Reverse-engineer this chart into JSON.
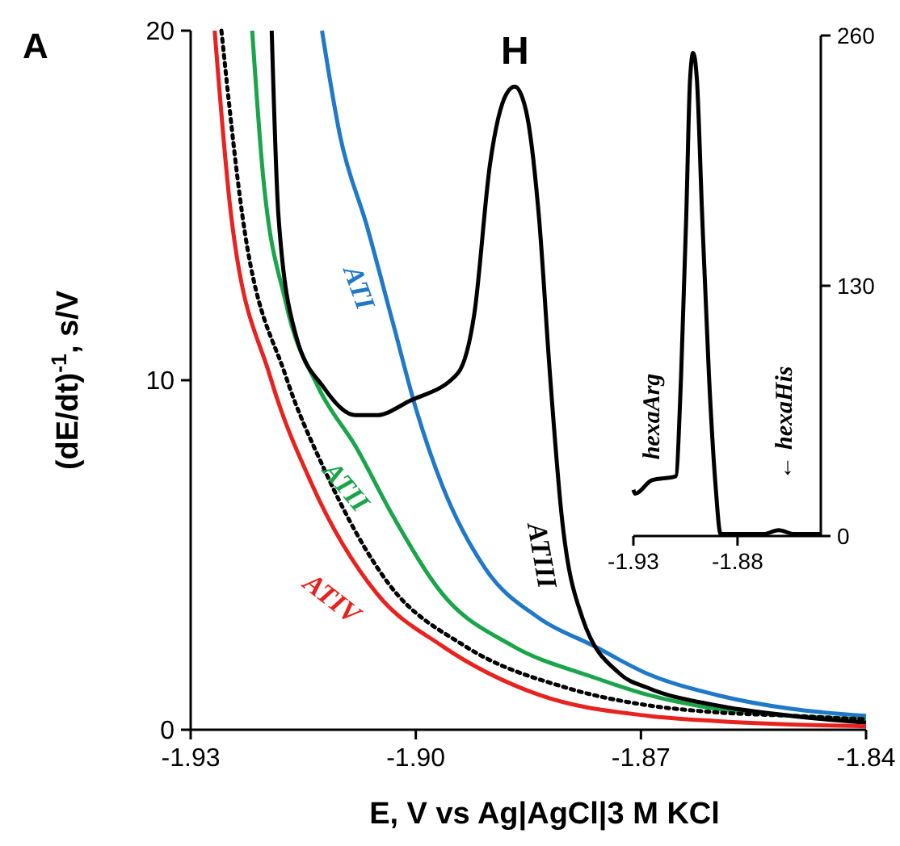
{
  "chart_data": [
    {
      "type": "line",
      "xlabel": "E, V vs Ag|AgCl|3 M KCl",
      "ylabel": "(dE/dt)$^{-1}$, s/V",
      "annotations": [
        "A",
        {
          "text": "H",
          "x": -1.8868,
          "y": 18.4
        }
      ],
      "xlim": [
        -1.93,
        -1.84
      ],
      "xticks": [
        -1.93,
        {
          "value": -1.9,
          "label": "-1.90"
        },
        -1.87,
        -1.84
      ],
      "ylim": [
        0,
        20
      ],
      "yticks": [
        0,
        10,
        20
      ],
      "grid": false,
      "marker": "none",
      "series": [
        {
          "name": "ATI",
          "color": "#1f78c8",
          "x": [
            -1.9125,
            -1.9101,
            -1.9065,
            -1.903,
            -1.9,
            -1.8965,
            -1.8907,
            -1.8836,
            -1.8763,
            -1.8691,
            -1.86,
            -1.85,
            -1.84
          ],
          "values": [
            20,
            17,
            14.4,
            11.6,
            9.2,
            7,
            4.6,
            3.2,
            2.4,
            1.6,
            1.0,
            0.6,
            0.4
          ]
        },
        {
          "name": "ATII",
          "color": "#1aa54a",
          "x": [
            -1.9218,
            -1.9205,
            -1.9173,
            -1.913,
            -1.908,
            -1.903,
            -1.8965,
            -1.8871,
            -1.8763,
            -1.8691,
            -1.86,
            -1.85,
            -1.84
          ],
          "values": [
            20,
            16.2,
            12.2,
            9.8,
            8.1,
            6.1,
            3.9,
            2.4,
            1.5,
            1.0,
            0.6,
            0.4,
            0.3
          ]
        },
        {
          "name": "ATIII",
          "color": "#000000",
          "x": [
            -1.9192,
            -1.9183,
            -1.916,
            -1.9123,
            -1.908,
            -1.9052,
            -1.9009,
            -1.8944,
            -1.8922,
            -1.8901,
            -1.8879,
            -1.8868,
            -1.8853,
            -1.8836,
            -1.8821,
            -1.8806,
            -1.8778,
            -1.8728,
            -1.8691,
            -1.86,
            -1.85,
            -1.84
          ],
          "values": [
            20,
            14.7,
            11.3,
            9.8,
            9,
            9,
            9.4,
            10.2,
            11.9,
            16.2,
            18.2,
            18.4,
            17.7,
            14.7,
            10.1,
            6.2,
            3.2,
            1.6,
            1.2,
            0.7,
            0.4,
            0.2
          ]
        },
        {
          "name": "ATIV",
          "color": "#e8221e",
          "x": [
            -1.9268,
            -1.9246,
            -1.9194,
            -1.9138,
            -1.9052,
            -1.8965,
            -1.8836,
            -1.8691,
            -1.86,
            -1.85,
            -1.84
          ],
          "values": [
            20,
            14.7,
            10.1,
            7,
            3.9,
            2.4,
            1,
            0.4,
            0.25,
            0.15,
            0.1
          ]
        },
        {
          "color": "#000000",
          "line_style": "dotted",
          "x": [
            -1.9259,
            -1.9231,
            -1.9173,
            -1.9123,
            -1.9037,
            -1.8935,
            -1.8799,
            -1.8691,
            -1.86,
            -1.85,
            -1.84
          ],
          "values": [
            20,
            14.7,
            10.1,
            7.5,
            4.2,
            2.4,
            1.2,
            0.7,
            0.5,
            0.4,
            0.3
          ]
        }
      ]
    },
    {
      "type": "line",
      "annotations": [
        "hexaArg",
        "← hexaHis"
      ],
      "xlim": [
        -1.93,
        -1.84
      ],
      "xticks": [
        -1.93,
        -1.88
      ],
      "y2lim": [
        0,
        260
      ],
      "y2ticks": [
        0,
        130,
        260
      ],
      "grid": false,
      "marker": "none",
      "series": [
        {
          "color": "#000000",
          "axis": "y2",
          "x": [
            -1.93,
            -1.9292,
            -1.9211,
            -1.9097,
            -1.9071,
            -1.9046,
            -1.9028,
            -1.9013,
            -1.8995,
            -1.897,
            -1.8937,
            -1.8906,
            -1.8881,
            -1.883,
            -1.8678,
            -1.8602,
            -1.8526,
            -1.8424,
            -1.84
          ],
          "values": [
            24,
            22,
            29,
            31,
            83,
            167,
            237,
            251,
            237,
            167,
            83,
            27,
            1,
            1,
            1,
            3,
            1,
            1,
            1
          ]
        }
      ]
    }
  ]
}
